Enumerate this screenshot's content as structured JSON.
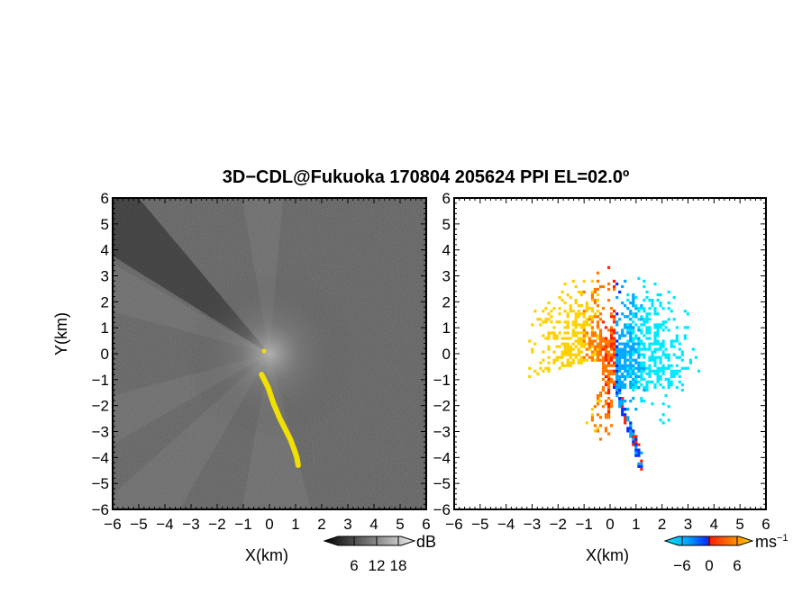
{
  "title": "3D−CDL@Fukuoka 170804 205624 PPI EL=02.0º",
  "chart_data": [
    {
      "type": "heatmap",
      "panel": "left",
      "variable": "backscatter intensity",
      "xlabel": "X(km)",
      "ylabel": "Y(km)",
      "xlim": [
        -6,
        6
      ],
      "ylim": [
        -6,
        6
      ],
      "xticks": [
        "−6",
        "−5",
        "−4",
        "−3",
        "−2",
        "−1",
        "0",
        "1",
        "2",
        "3",
        "4",
        "5",
        "6"
      ],
      "yticks": [
        "6",
        "5",
        "4",
        "3",
        "2",
        "1",
        "0",
        "−1",
        "−2",
        "−3",
        "−4",
        "−5",
        "−6"
      ],
      "colorbar": {
        "ticks": [
          "6",
          "12",
          "18"
        ],
        "unit": "dB",
        "colormap": "grayscale"
      },
      "highlight_echo_color": "#f0e000",
      "highlight_echo_path": [
        [
          -0.3,
          -0.8
        ],
        [
          -0.05,
          -1.3
        ],
        [
          0.15,
          -1.9
        ],
        [
          0.4,
          -2.5
        ],
        [
          0.6,
          -2.9
        ],
        [
          0.8,
          -3.3
        ],
        [
          0.95,
          -3.7
        ],
        [
          1.05,
          -4.0
        ],
        [
          1.1,
          -4.3
        ]
      ],
      "clutter_bright_sectors_deg": [
        [
          150,
          165
        ],
        [
          195,
          210
        ],
        [
          222,
          240
        ],
        [
          85,
          100
        ],
        [
          260,
          285
        ]
      ]
    },
    {
      "type": "heatmap",
      "panel": "right",
      "variable": "radial velocity",
      "xlabel": "X(km)",
      "xlim": [
        -6,
        6
      ],
      "ylim": [
        -6,
        6
      ],
      "xticks": [
        "−6",
        "−5",
        "−4",
        "−3",
        "−2",
        "−1",
        "0",
        "1",
        "2",
        "3",
        "4",
        "5",
        "6"
      ],
      "yticks": [
        "6",
        "5",
        "4",
        "3",
        "2",
        "1",
        "0",
        "−1",
        "−2",
        "−3",
        "−4",
        "−5",
        "−6"
      ],
      "colorbar": {
        "ticks": [
          "−6",
          "0",
          "6"
        ],
        "unit": "ms",
        "unit_exp": "−1",
        "colors": [
          "#00e8ff",
          "#00a8ff",
          "#0030ff",
          "#ff2000",
          "#ff7800",
          "#ffd000"
        ],
        "range": [
          -6,
          6
        ]
      },
      "velocity_field": {
        "negative_side": "east",
        "positive_side": "west",
        "echo_radius_km": 3.5
      }
    }
  ]
}
